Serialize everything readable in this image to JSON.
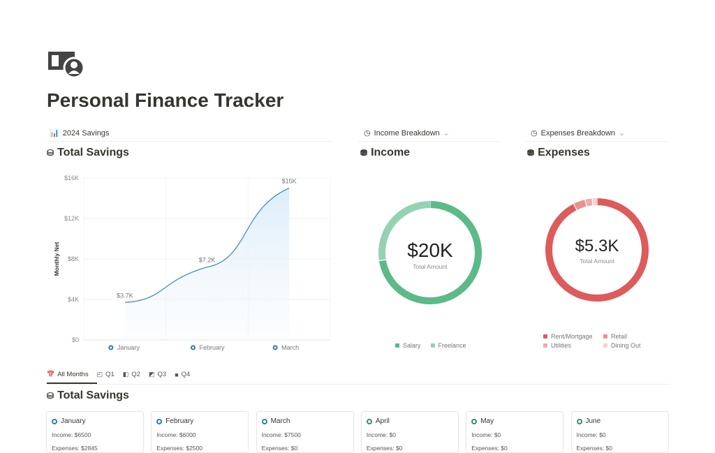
{
  "page": {
    "title": "Personal Finance Tracker",
    "icon": "money-icon"
  },
  "savings_view": {
    "tab_label": "2024 Savings",
    "heading": "Total Savings"
  },
  "income_view": {
    "tab_label": "Income Breakdown",
    "heading": "Income",
    "total": "$20K",
    "total_label": "Total Amount"
  },
  "expenses_view": {
    "tab_label": "Expenses Breakdown",
    "heading": "Expenses",
    "total": "$5.3K",
    "total_label": "Total Amount"
  },
  "chart_data": [
    {
      "type": "area",
      "ylabel": "Monthly Net",
      "categories": [
        "January",
        "February",
        "March"
      ],
      "values": [
        3700,
        7200,
        15000
      ],
      "data_labels": [
        "$3.7K",
        "$7.2K",
        "$15K"
      ],
      "yticks": [
        "$0",
        "$4K",
        "$8K",
        "$12K",
        "$16K"
      ],
      "ylim": [
        0,
        16000
      ],
      "grid": true,
      "color": "#4a8fb0"
    },
    {
      "type": "pie",
      "donut": true,
      "categories": [
        "Salary",
        "Freelance"
      ],
      "values": [
        14500,
        5500
      ],
      "colors": [
        "#5bba88",
        "#94d2b1"
      ],
      "legend": "bottom"
    },
    {
      "type": "pie",
      "donut": true,
      "categories": [
        "Rent/Mortgage",
        "Retail",
        "Utilities",
        "Dining Out"
      ],
      "values": [
        4945,
        200,
        120,
        80
      ],
      "colors": [
        "#de5b5b",
        "#e89090",
        "#eeaaaa",
        "#f6d0d0"
      ],
      "legend": "bottom"
    }
  ],
  "tabs": [
    {
      "label": "All Months",
      "active": true
    },
    {
      "label": "Q1"
    },
    {
      "label": "Q2"
    },
    {
      "label": "Q3"
    },
    {
      "label": "Q4"
    }
  ],
  "board": {
    "heading": "Total Savings",
    "cards": [
      {
        "name": "January",
        "income": "Income: $6500",
        "expenses": "Expenses: $2845",
        "color": "#2f7ea6"
      },
      {
        "name": "February",
        "income": "Income: $6000",
        "expenses": "Expenses: $2500",
        "color": "#2f7ea6"
      },
      {
        "name": "March",
        "income": "Income: $7500",
        "expenses": "Expenses: $0",
        "color": "#2f7ea6"
      },
      {
        "name": "April",
        "income": "Income: $0",
        "expenses": "Expenses: $0",
        "color": "#3d8a6a"
      },
      {
        "name": "May",
        "income": "Income: $0",
        "expenses": "Expenses: $0",
        "color": "#3d8a6a"
      },
      {
        "name": "June",
        "income": "Income: $0",
        "expenses": "Expenses: $0",
        "color": "#3d8a6a"
      }
    ]
  }
}
